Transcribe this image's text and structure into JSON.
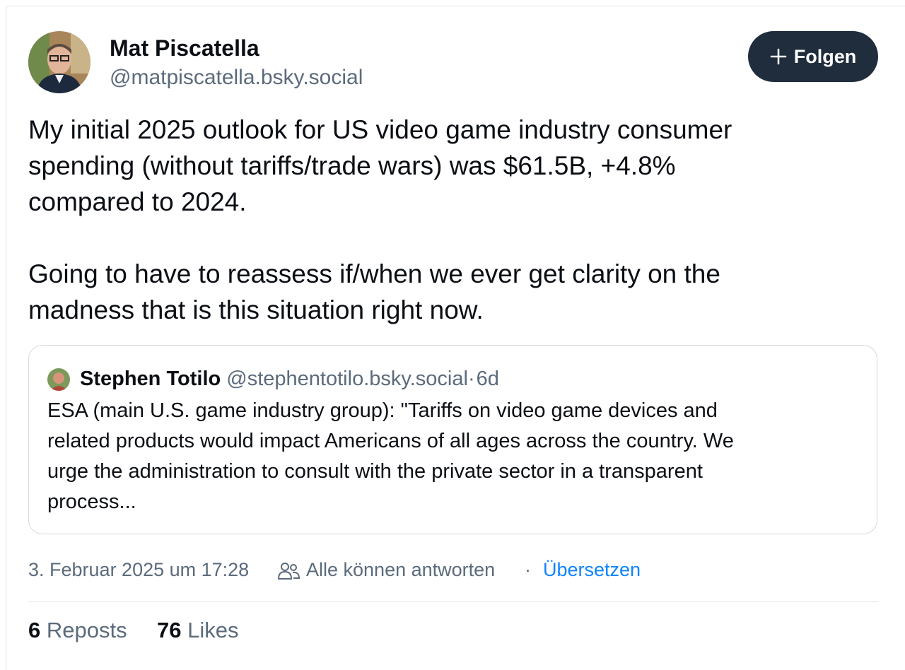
{
  "post": {
    "author": {
      "name": "Mat Piscatella",
      "handle": "@matpiscatella.bsky.social"
    },
    "follow_button": "Folgen",
    "paragraphs": [
      [
        "My initial 2025 outlook for US video game industry consumer",
        "spending (without tariffs/trade wars) was $61.5B, +4.8%",
        "compared to 2024."
      ],
      [
        "Going to have to reassess if/when we ever get clarity on the",
        "madness that is this situation right now."
      ]
    ],
    "quote": {
      "author": {
        "name": "Stephen Totilo",
        "handle": "@stephentotilo.bsky.social"
      },
      "separator": "·",
      "age": "6d",
      "lines": [
        "ESA (main U.S. game industry group): \"Tariffs on video game devices and",
        "related products would impact Americans of all ages across the country. We",
        "urge the administration to consult with the private sector in a transparent",
        "process..."
      ]
    },
    "footer": {
      "timestamp": "3. Februar 2025 um 17:28",
      "reply_setting": "Alle können antworten",
      "separator": "·",
      "translate": "Übersetzen"
    },
    "stats": {
      "reposts": {
        "count": 6,
        "label": "Reposts"
      },
      "likes": {
        "count": 76,
        "label": "Likes"
      }
    }
  }
}
